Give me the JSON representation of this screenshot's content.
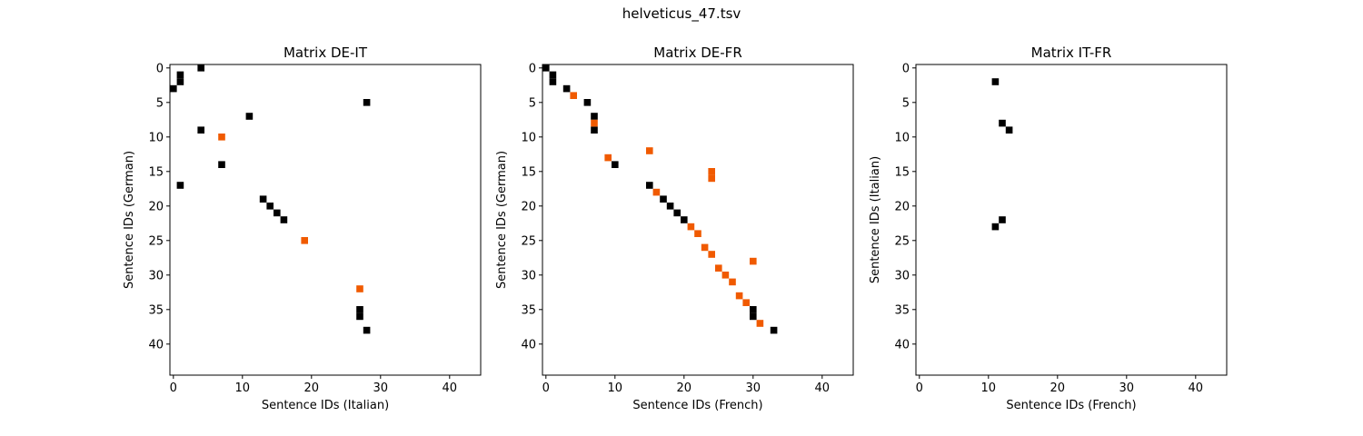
{
  "figure": {
    "suptitle": "helveticus_47.tsv"
  },
  "colors": {
    "match": "#000000",
    "highlight": "#f05a00",
    "axes_edge": "#000000",
    "background": "#ffffff"
  },
  "chart_data": [
    {
      "type": "heatmap",
      "title": "Matrix DE-IT",
      "xlabel": "Sentence IDs (Italian)",
      "ylabel": "Sentence IDs (German)",
      "xlim": [
        -0.5,
        44.5
      ],
      "ylim": [
        44.5,
        -0.5
      ],
      "xticks": [
        0,
        10,
        20,
        30,
        40
      ],
      "yticks": [
        0,
        5,
        10,
        15,
        20,
        25,
        30,
        35,
        40
      ],
      "grid": false,
      "series": [
        {
          "color_key": "match",
          "points": [
            [
              4,
              0
            ],
            [
              1,
              1
            ],
            [
              1,
              2
            ],
            [
              0,
              3
            ],
            [
              28,
              5
            ],
            [
              11,
              7
            ],
            [
              4,
              9
            ],
            [
              7,
              14
            ],
            [
              1,
              17
            ],
            [
              13,
              19
            ],
            [
              14,
              20
            ],
            [
              15,
              21
            ],
            [
              16,
              22
            ],
            [
              27,
              35
            ],
            [
              27,
              36
            ],
            [
              28,
              38
            ]
          ]
        },
        {
          "color_key": "highlight",
          "points": [
            [
              7,
              10
            ],
            [
              19,
              25
            ],
            [
              27,
              32
            ]
          ]
        }
      ]
    },
    {
      "type": "heatmap",
      "title": "Matrix DE-FR",
      "xlabel": "Sentence IDs (French)",
      "ylabel": "Sentence IDs (German)",
      "xlim": [
        -0.5,
        44.5
      ],
      "ylim": [
        44.5,
        -0.5
      ],
      "xticks": [
        0,
        10,
        20,
        30,
        40
      ],
      "yticks": [
        0,
        5,
        10,
        15,
        20,
        25,
        30,
        35,
        40
      ],
      "grid": false,
      "series": [
        {
          "color_key": "match",
          "points": [
            [
              0,
              0
            ],
            [
              1,
              1
            ],
            [
              1,
              2
            ],
            [
              3,
              3
            ],
            [
              6,
              5
            ],
            [
              7,
              7
            ],
            [
              7,
              9
            ],
            [
              10,
              14
            ],
            [
              15,
              17
            ],
            [
              17,
              19
            ],
            [
              18,
              20
            ],
            [
              19,
              21
            ],
            [
              20,
              22
            ],
            [
              30,
              35
            ],
            [
              30,
              36
            ],
            [
              33,
              38
            ]
          ]
        },
        {
          "color_key": "highlight",
          "points": [
            [
              4,
              4
            ],
            [
              7,
              8
            ],
            [
              9,
              13
            ],
            [
              15,
              12
            ],
            [
              24,
              15
            ],
            [
              24,
              16
            ],
            [
              16,
              18
            ],
            [
              21,
              23
            ],
            [
              22,
              24
            ],
            [
              23,
              26
            ],
            [
              24,
              27
            ],
            [
              30,
              28
            ],
            [
              25,
              29
            ],
            [
              26,
              30
            ],
            [
              27,
              31
            ],
            [
              28,
              33
            ],
            [
              29,
              34
            ],
            [
              31,
              37
            ]
          ]
        }
      ]
    },
    {
      "type": "heatmap",
      "title": "Matrix IT-FR",
      "xlabel": "Sentence IDs (French)",
      "ylabel": "Sentence IDs (Italian)",
      "xlim": [
        -0.5,
        44.5
      ],
      "ylim": [
        44.5,
        -0.5
      ],
      "xticks": [
        0,
        10,
        20,
        30,
        40
      ],
      "yticks": [
        0,
        5,
        10,
        15,
        20,
        25,
        30,
        35,
        40
      ],
      "grid": false,
      "series": [
        {
          "color_key": "match",
          "points": [
            [
              11,
              2
            ],
            [
              12,
              8
            ],
            [
              13,
              9
            ],
            [
              12,
              22
            ],
            [
              11,
              23
            ]
          ]
        }
      ]
    }
  ]
}
